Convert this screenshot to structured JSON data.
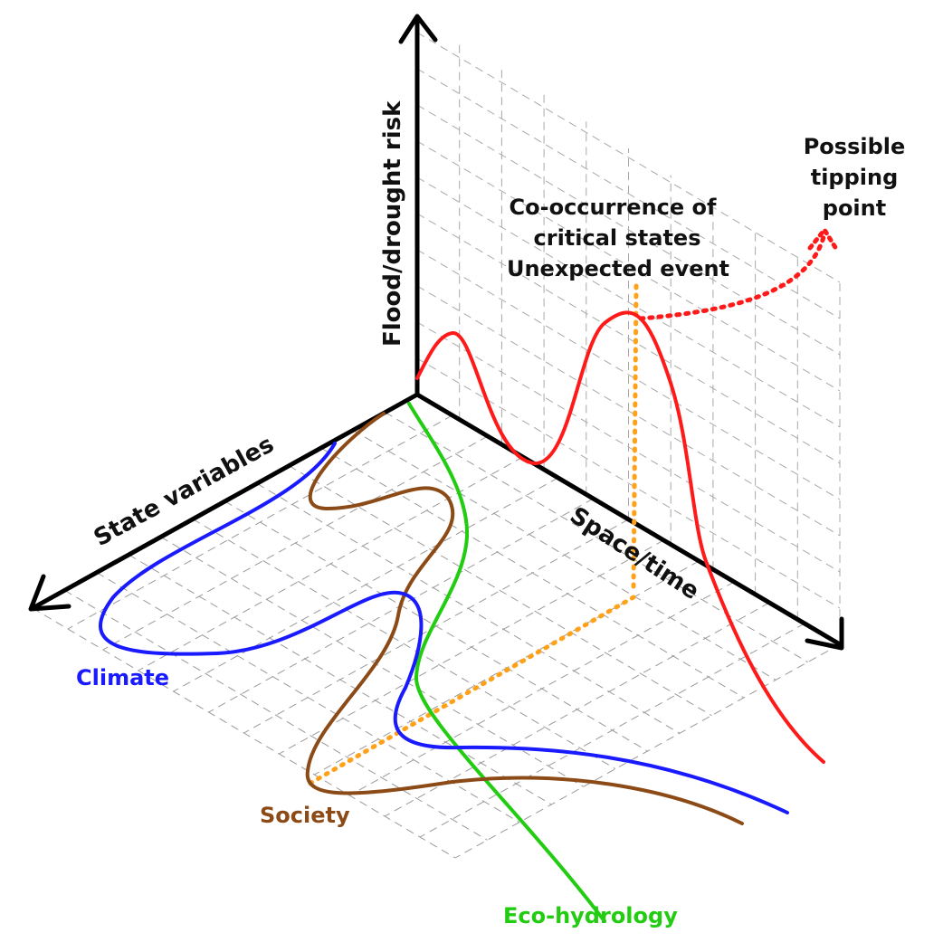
{
  "axes": {
    "vertical": "Flood/drought risk",
    "left": "State variables",
    "right": "Space/time"
  },
  "annotations": {
    "cooccurrence": [
      "Co-occurrence of",
      "critical states",
      "Unexpected event"
    ],
    "tipping": [
      "Possible",
      "tipping",
      "point"
    ]
  },
  "series": [
    {
      "key": "climate",
      "label": "Climate",
      "color": "#1a1aff"
    },
    {
      "key": "society",
      "label": "Society",
      "color": "#8b4a16"
    },
    {
      "key": "ecohydrology",
      "label": "Eco-hydrology",
      "color": "#22cc11"
    },
    {
      "key": "risk",
      "label": "",
      "color": "#ff1a1a"
    }
  ],
  "highlight_color": "#ffa21a"
}
